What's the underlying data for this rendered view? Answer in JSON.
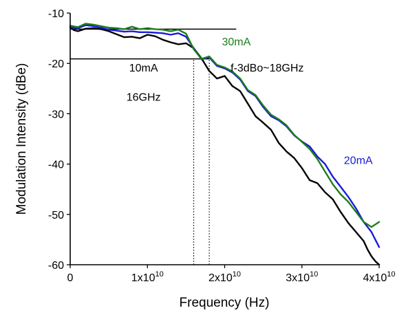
{
  "chart_data": {
    "type": "line",
    "xlabel": "Frequency (Hz)",
    "ylabel": "Modulation Intensity (dBe)",
    "xlim": [
      0,
      40000000000
    ],
    "ylim": [
      -60,
      -10
    ],
    "x_ticks": [
      {
        "value": 0,
        "mantissa": "0",
        "exponent": ""
      },
      {
        "value": 10000000000,
        "mantissa": "1x10",
        "exponent": "10"
      },
      {
        "value": 20000000000,
        "mantissa": "2x10",
        "exponent": "10"
      },
      {
        "value": 30000000000,
        "mantissa": "3x10",
        "exponent": "10"
      },
      {
        "value": 40000000000,
        "mantissa": "4x10",
        "exponent": "10"
      }
    ],
    "y_ticks": [
      {
        "value": -10,
        "label": "-10"
      },
      {
        "value": -20,
        "label": "-20"
      },
      {
        "value": -30,
        "label": "-30"
      },
      {
        "value": -40,
        "label": "-40"
      },
      {
        "value": -50,
        "label": "-50"
      },
      {
        "value": -60,
        "label": "-60"
      }
    ],
    "series": [
      {
        "name": "10mA",
        "color": "#000000",
        "x": [
          0,
          500000000,
          1000000000,
          2000000000,
          3000000000,
          4000000000,
          5000000000,
          6000000000,
          7000000000,
          8000000000,
          9000000000,
          10000000000,
          11000000000,
          12000000000,
          13000000000,
          14000000000,
          15000000000,
          16000000000,
          17000000000,
          18000000000,
          19000000000,
          20000000000,
          21000000000,
          22000000000,
          23000000000,
          24000000000,
          25000000000,
          26000000000,
          27000000000,
          28000000000,
          29000000000,
          30000000000,
          31000000000,
          32000000000,
          33000000000,
          34000000000,
          35000000000,
          36000000000,
          37000000000,
          38000000000,
          38500000000,
          39000000000,
          39500000000,
          40000000000
        ],
        "y": [
          -12.8,
          -13.4,
          -13.6,
          -13.1,
          -13.0,
          -13.2,
          -13.6,
          -14.2,
          -14.8,
          -14.7,
          -15.0,
          -14.3,
          -14.6,
          -15.3,
          -15.8,
          -16.2,
          -16.0,
          -17.0,
          -19.0,
          -21.5,
          -23.0,
          -22.5,
          -24.5,
          -25.5,
          -28.0,
          -30.5,
          -31.8,
          -33.2,
          -35.8,
          -37.5,
          -38.8,
          -40.8,
          -43.2,
          -43.8,
          -45.6,
          -47.0,
          -49.5,
          -51.7,
          -53.5,
          -55.3,
          -57.0,
          -58.3,
          -59.3,
          -60.0
        ]
      },
      {
        "name": "20mA",
        "color": "#1a1adc",
        "x": [
          0,
          1000000000,
          2000000000,
          3000000000,
          4000000000,
          5000000000,
          6000000000,
          7000000000,
          8000000000,
          9000000000,
          10000000000,
          11000000000,
          12000000000,
          13000000000,
          14000000000,
          15000000000,
          16000000000,
          17000000000,
          18000000000,
          19000000000,
          20000000000,
          21000000000,
          22000000000,
          23000000000,
          24000000000,
          25000000000,
          26000000000,
          27000000000,
          28000000000,
          29000000000,
          30000000000,
          31000000000,
          32000000000,
          33000000000,
          34000000000,
          35000000000,
          36000000000,
          37000000000,
          38000000000,
          39000000000,
          40000000000
        ],
        "y": [
          -12.8,
          -13.0,
          -12.4,
          -12.6,
          -12.9,
          -13.3,
          -13.5,
          -13.7,
          -13.6,
          -13.8,
          -13.8,
          -13.9,
          -14.0,
          -14.3,
          -14.0,
          -14.7,
          -17.0,
          -19.2,
          -18.8,
          -20.5,
          -21.0,
          -21.8,
          -23.2,
          -25.5,
          -26.5,
          -28.7,
          -30.5,
          -31.3,
          -32.5,
          -34.3,
          -35.5,
          -36.5,
          -38.5,
          -40.0,
          -42.5,
          -44.5,
          -46.5,
          -48.8,
          -51.5,
          -53.5,
          -56.5
        ]
      },
      {
        "name": "30mA",
        "color": "#1d7d1d",
        "x": [
          0,
          1000000000,
          2000000000,
          3000000000,
          4000000000,
          5000000000,
          6000000000,
          7000000000,
          8000000000,
          9000000000,
          10000000000,
          11000000000,
          12000000000,
          13000000000,
          14000000000,
          15000000000,
          16000000000,
          17000000000,
          18000000000,
          19000000000,
          20000000000,
          21000000000,
          22000000000,
          23000000000,
          24000000000,
          25000000000,
          26000000000,
          27000000000,
          28000000000,
          29000000000,
          30000000000,
          31000000000,
          32000000000,
          33000000000,
          34000000000,
          35000000000,
          36000000000,
          37000000000,
          38000000000,
          39000000000,
          40000000000
        ],
        "y": [
          -12.5,
          -12.8,
          -12.1,
          -12.3,
          -12.6,
          -12.9,
          -13.0,
          -13.2,
          -12.7,
          -13.2,
          -13.0,
          -13.2,
          -13.3,
          -13.6,
          -13.3,
          -14.1,
          -17.2,
          -19.1,
          -18.6,
          -20.3,
          -20.8,
          -21.6,
          -23.0,
          -25.3,
          -26.3,
          -28.4,
          -30.2,
          -31.1,
          -32.3,
          -34.2,
          -35.6,
          -37.0,
          -39.0,
          -41.5,
          -44.0,
          -46.0,
          -47.5,
          -49.5,
          -51.5,
          -52.5,
          -51.5
        ]
      }
    ],
    "reference_lines": [
      {
        "kind": "horizontal",
        "y": -13.2,
        "x0": 0,
        "x1": 21500000000,
        "dashed": false
      },
      {
        "kind": "horizontal",
        "y": -19.1,
        "x0": 0,
        "x1": 18000000000,
        "dashed": false
      },
      {
        "kind": "vertical",
        "x": 16000000000,
        "y0": -60,
        "y1": -19.1,
        "dashed": true
      },
      {
        "kind": "vertical",
        "x": 18000000000,
        "y0": -60,
        "y1": -19.1,
        "dashed": true
      }
    ],
    "annotations": [
      {
        "text": "30mA",
        "x": 21500000000,
        "y": -16.4,
        "color": "#1d7d1d"
      },
      {
        "text": "f-3dBo~18GHz",
        "x": 25500000000,
        "y": -21.6,
        "color": "#000000"
      },
      {
        "text": "10mA",
        "x": 9500000000,
        "y": -21.6,
        "color": "#000000"
      },
      {
        "text": "16GHz",
        "x": 9500000000,
        "y": -27.4,
        "color": "#000000"
      },
      {
        "text": "20mA",
        "x": 37300000000,
        "y": -40.0,
        "color": "#1a1adc"
      }
    ]
  }
}
